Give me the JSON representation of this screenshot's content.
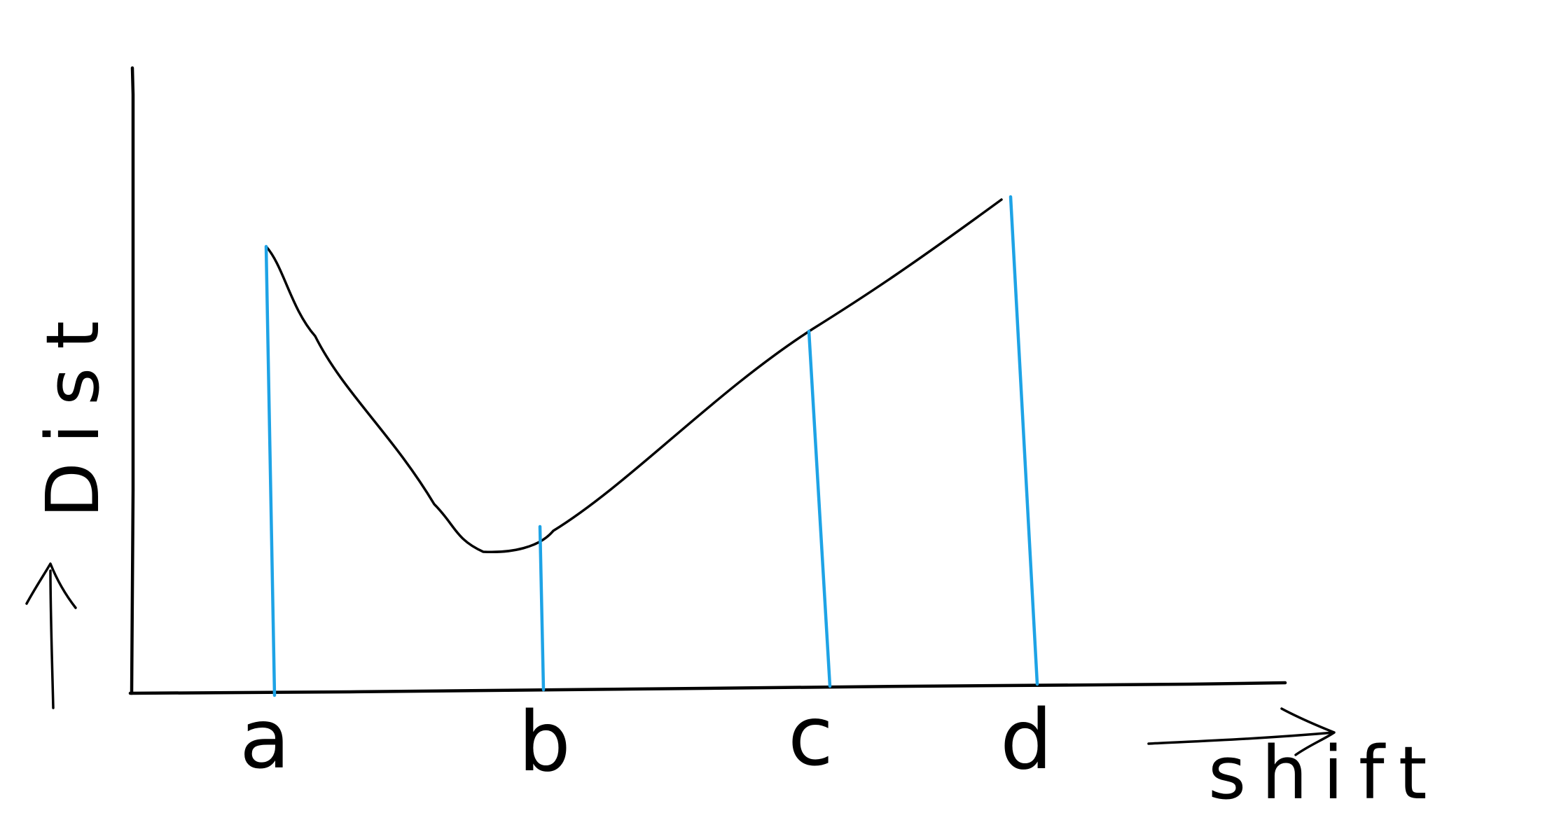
{
  "diagram": {
    "colors": {
      "curve": "#000000",
      "axes": "#000000",
      "drop_lines": "#1ea3e6",
      "background": "#ffffff"
    },
    "axes": {
      "x_label": "shift",
      "y_label": "Dist"
    },
    "markers": [
      {
        "label": "a"
      },
      {
        "label": "b"
      },
      {
        "label": "c"
      },
      {
        "label": "d"
      }
    ]
  }
}
